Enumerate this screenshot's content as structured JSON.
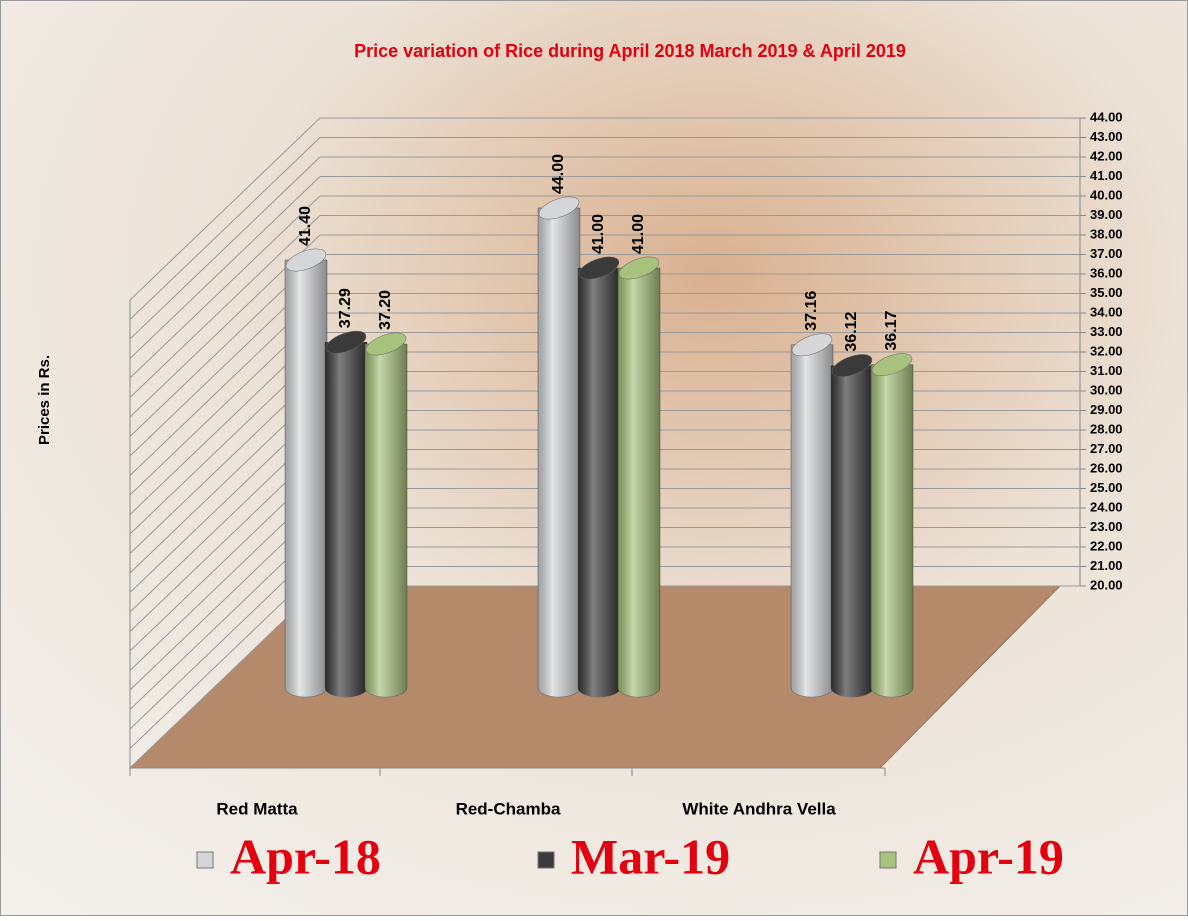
{
  "chart_data": {
    "type": "bar3d",
    "title": "Price variation of Rice during  April  2018  March  2019  &  April  2019",
    "y_label": "Prices in Rs.",
    "categories": [
      "Red Matta",
      "Red-Chamba",
      "White Andhra Vella"
    ],
    "series": [
      {
        "name": "Apr-18",
        "color": "#d4d6d8",
        "values": [
          41.4,
          44,
          37.16
        ],
        "value_labels": [
          "41.40",
          "44.00",
          "37.16"
        ]
      },
      {
        "name": "Mar-19",
        "color": "#3a3a3a",
        "values": [
          37.29,
          41,
          36.12
        ],
        "value_labels": [
          "37.29",
          "41.00",
          "36.12"
        ]
      },
      {
        "name": "Apr-19",
        "color": "#a7c27c",
        "values": [
          37.2,
          41,
          36.17
        ],
        "value_labels": [
          "37.20",
          "41.00",
          "36.17"
        ]
      }
    ],
    "ylim": [
      20,
      44
    ],
    "yticks": [
      {
        "value": 20,
        "label": "20.00"
      },
      {
        "value": 21,
        "label": "21.00"
      },
      {
        "value": 22,
        "label": "22.00"
      },
      {
        "value": 23,
        "label": "23.00"
      },
      {
        "value": 24,
        "label": "24.00"
      },
      {
        "value": 25,
        "label": "25.00"
      },
      {
        "value": 26,
        "label": "26.00"
      },
      {
        "value": 27,
        "label": "27.00"
      },
      {
        "value": 28,
        "label": "28.00"
      },
      {
        "value": 29,
        "label": "29.00"
      },
      {
        "value": 30,
        "label": "30.00"
      },
      {
        "value": 31,
        "label": "31.00"
      },
      {
        "value": 32,
        "label": "32.00"
      },
      {
        "value": 33,
        "label": "33.00"
      },
      {
        "value": 34,
        "label": "34.00"
      },
      {
        "value": 35,
        "label": "35.00"
      },
      {
        "value": 36,
        "label": "36.00"
      },
      {
        "value": 37,
        "label": "37.00"
      },
      {
        "value": 38,
        "label": "38.00"
      },
      {
        "value": 39,
        "label": "39.00"
      },
      {
        "value": 40,
        "label": "40.00"
      },
      {
        "value": 41,
        "label": "41.00"
      },
      {
        "value": 42,
        "label": "42.00"
      },
      {
        "value": 43,
        "label": "43.00"
      },
      {
        "value": 44,
        "label": "44.00"
      }
    ],
    "grid": true
  }
}
